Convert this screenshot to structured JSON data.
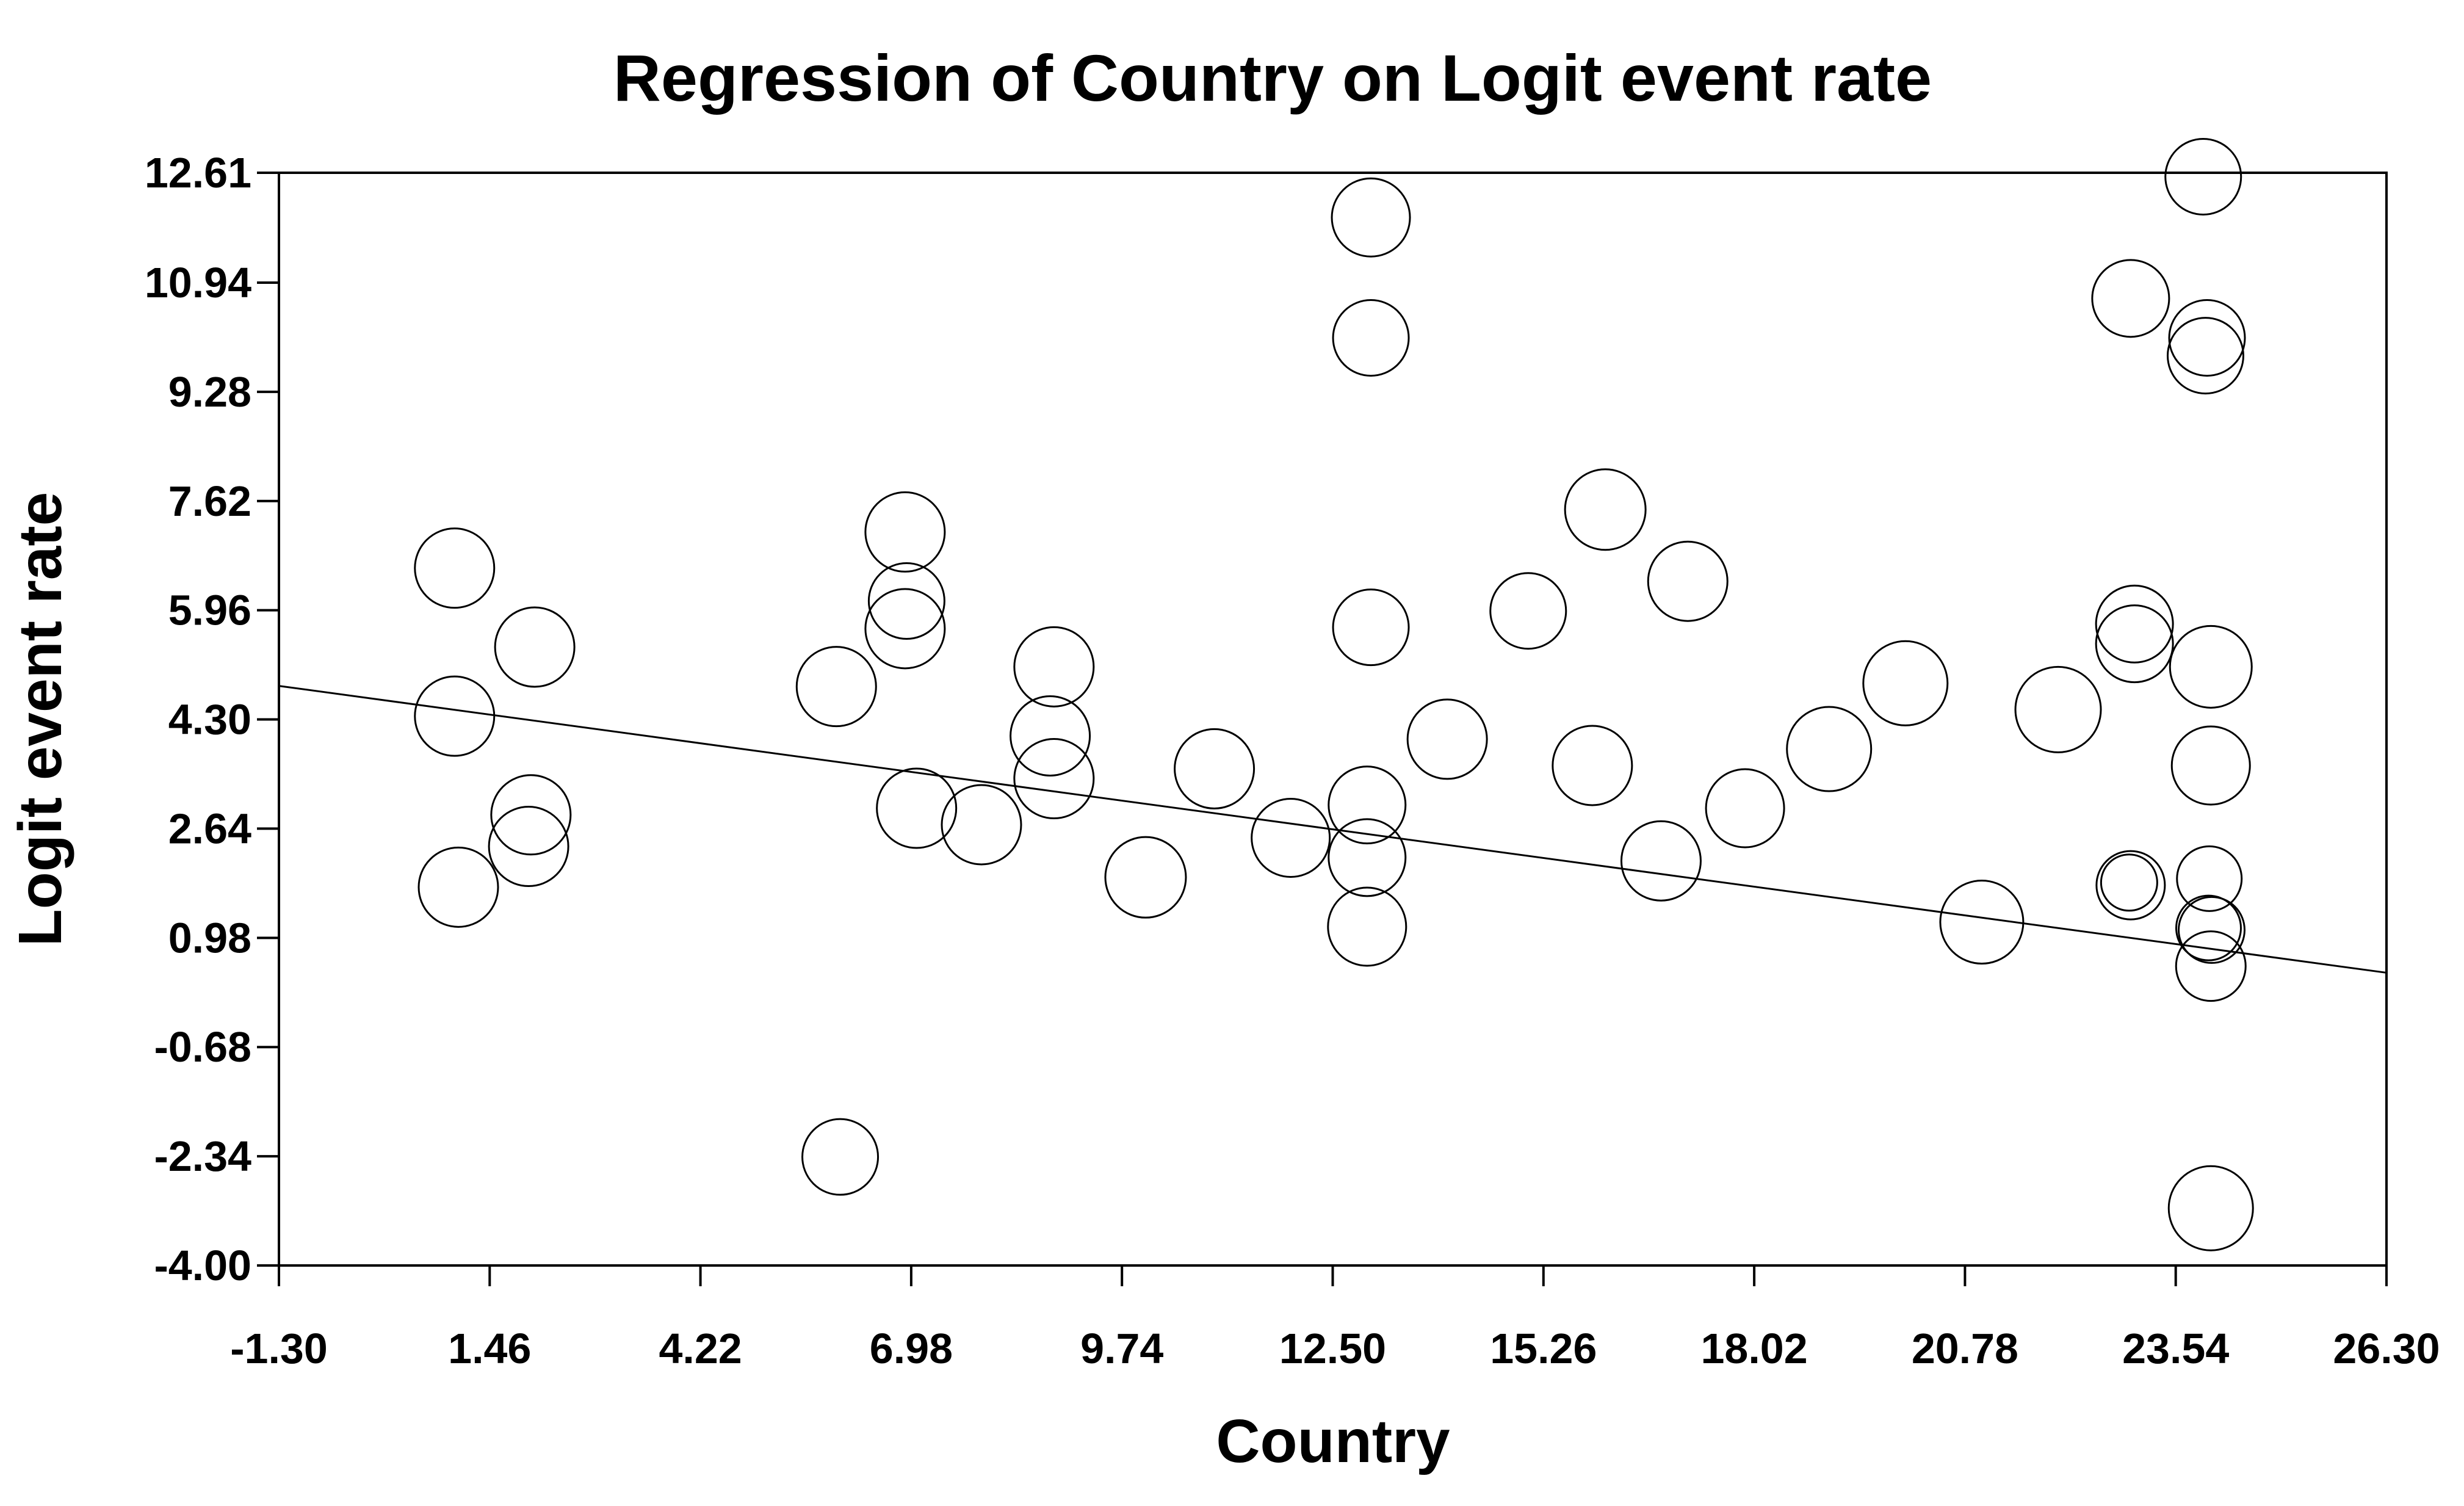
{
  "chart_data": {
    "type": "scatter",
    "title": "Regression of Country on Logit event rate",
    "xlabel": "Country",
    "ylabel": "Logit event rate",
    "xlim": [
      -1.3,
      26.3
    ],
    "ylim": [
      -4.0,
      12.61
    ],
    "grid": false,
    "legend": null,
    "x_ticks": [
      {
        "v": -1.3,
        "label": "-1.30"
      },
      {
        "v": 1.46,
        "label": "1.46"
      },
      {
        "v": 4.22,
        "label": "4.22"
      },
      {
        "v": 6.98,
        "label": "6.98"
      },
      {
        "v": 9.74,
        "label": "9.74"
      },
      {
        "v": 12.5,
        "label": "12.50"
      },
      {
        "v": 15.26,
        "label": "15.26"
      },
      {
        "v": 18.02,
        "label": "18.02"
      },
      {
        "v": 20.78,
        "label": "20.78"
      },
      {
        "v": 23.54,
        "label": "23.54"
      },
      {
        "v": 26.3,
        "label": "26.30"
      }
    ],
    "y_ticks": [
      {
        "v": 12.61,
        "label": "12.61"
      },
      {
        "v": 10.94,
        "label": "10.94"
      },
      {
        "v": 9.28,
        "label": "9.28"
      },
      {
        "v": 7.62,
        "label": "7.62"
      },
      {
        "v": 5.96,
        "label": "5.96"
      },
      {
        "v": 4.3,
        "label": "4.30"
      },
      {
        "v": 2.64,
        "label": "2.64"
      },
      {
        "v": 0.98,
        "label": "0.98"
      },
      {
        "v": -0.68,
        "label": "-0.68"
      },
      {
        "v": -2.34,
        "label": "-2.34"
      },
      {
        "v": -4.0,
        "label": "-4.00"
      }
    ],
    "regression_line": {
      "x1": -1.3,
      "y1": 4.81,
      "x2": 26.3,
      "y2": 0.45
    },
    "points": [
      {
        "x": 1.0,
        "y": 6.6,
        "r": 65
      },
      {
        "x": 2.05,
        "y": 5.4,
        "r": 65
      },
      {
        "x": 1.0,
        "y": 4.35,
        "r": 65
      },
      {
        "x": 2.0,
        "y": 2.85,
        "r": 65
      },
      {
        "x": 1.97,
        "y": 2.37,
        "r": 65
      },
      {
        "x": 1.05,
        "y": 1.75,
        "r": 65
      },
      {
        "x": 6.0,
        "y": 4.8,
        "r": 65
      },
      {
        "x": 6.9,
        "y": 7.15,
        "r": 65
      },
      {
        "x": 6.92,
        "y": 6.1,
        "r": 62
      },
      {
        "x": 6.9,
        "y": 5.68,
        "r": 65
      },
      {
        "x": 7.05,
        "y": 2.95,
        "r": 65
      },
      {
        "x": 7.9,
        "y": 2.7,
        "r": 65
      },
      {
        "x": 6.05,
        "y": -2.35,
        "r": 62
      },
      {
        "x": 8.85,
        "y": 5.1,
        "r": 65
      },
      {
        "x": 8.8,
        "y": 4.05,
        "r": 65
      },
      {
        "x": 8.85,
        "y": 3.4,
        "r": 65
      },
      {
        "x": 10.05,
        "y": 1.9,
        "r": 66
      },
      {
        "x": 10.95,
        "y": 3.55,
        "r": 65
      },
      {
        "x": 11.95,
        "y": 2.5,
        "r": 64
      },
      {
        "x": 12.95,
        "y": 3.0,
        "r": 63
      },
      {
        "x": 12.95,
        "y": 2.2,
        "r": 63
      },
      {
        "x": 12.95,
        "y": 1.15,
        "r": 64
      },
      {
        "x": 13.0,
        "y": 5.7,
        "r": 62
      },
      {
        "x": 13.0,
        "y": 10.1,
        "r": 62
      },
      {
        "x": 13.0,
        "y": 11.93,
        "r": 64
      },
      {
        "x": 14.0,
        "y": 4.0,
        "r": 65
      },
      {
        "x": 15.06,
        "y": 5.95,
        "r": 62
      },
      {
        "x": 16.07,
        "y": 7.49,
        "r": 66
      },
      {
        "x": 15.9,
        "y": 3.6,
        "r": 65
      },
      {
        "x": 16.8,
        "y": 2.15,
        "r": 65
      },
      {
        "x": 17.15,
        "y": 6.4,
        "r": 65
      },
      {
        "x": 17.9,
        "y": 2.95,
        "r": 64
      },
      {
        "x": 19.0,
        "y": 3.85,
        "r": 69
      },
      {
        "x": 20.0,
        "y": 4.85,
        "r": 69
      },
      {
        "x": 21.0,
        "y": 1.22,
        "r": 68
      },
      {
        "x": 22.0,
        "y": 4.45,
        "r": 70
      },
      {
        "x": 22.95,
        "y": 1.78,
        "r": 56
      },
      {
        "x": 22.93,
        "y": 1.82,
        "r": 46
      },
      {
        "x": 23.98,
        "y": 1.88,
        "r": 53
      },
      {
        "x": 23.97,
        "y": 1.13,
        "r": 53
      },
      {
        "x": 24.01,
        "y": 1.1,
        "r": 54
      },
      {
        "x": 24.0,
        "y": 0.55,
        "r": 57
      },
      {
        "x": 24.0,
        "y": 3.6,
        "r": 64
      },
      {
        "x": 23.0,
        "y": 5.75,
        "r": 63
      },
      {
        "x": 23.0,
        "y": 5.45,
        "r": 63
      },
      {
        "x": 24.0,
        "y": 5.1,
        "r": 67
      },
      {
        "x": 23.9,
        "y": 12.55,
        "r": 62
      },
      {
        "x": 22.95,
        "y": 10.7,
        "r": 63
      },
      {
        "x": 23.95,
        "y": 10.1,
        "r": 62
      },
      {
        "x": 23.93,
        "y": 9.83,
        "r": 62
      },
      {
        "x": 24.0,
        "y": -3.13,
        "r": 69
      }
    ]
  }
}
